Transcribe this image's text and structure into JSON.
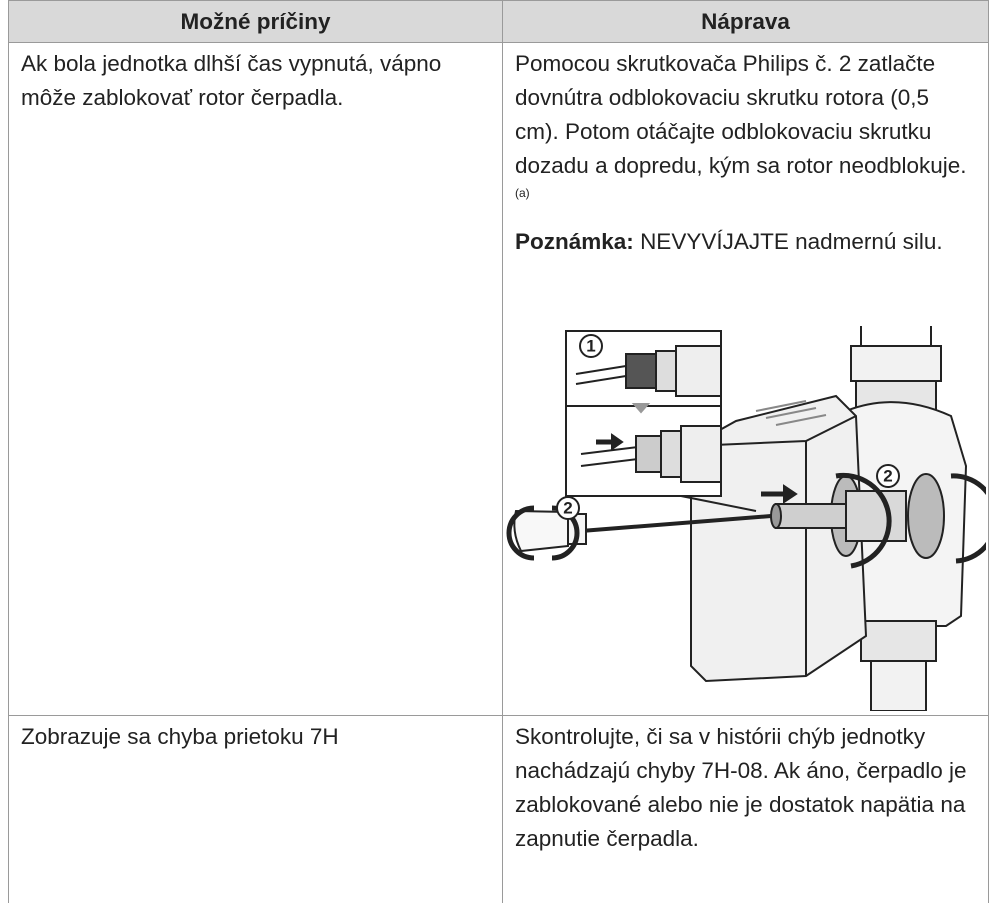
{
  "table": {
    "header": [
      "Možné príčiny",
      "Náprava"
    ],
    "rows": [
      {
        "cause": "Ak bola jednotka dlhší čas vypnutá, vápno môže zablokovať rotor čerpadla.",
        "remedy": {
          "text": "Pomocou skrutkovača Philips č. 2 zatlačte dovnútra odblokovaciu skrutku rotora (0,5 cm). Potom otáčajte odblokovaciu skrutku dozadu a dopredu, kým sa rotor neodblokuje.",
          "footnote_ref": "(a)",
          "note_label": "Poznámka:",
          "note_text": "NEVYVÍJAJTE nadmernú silu.",
          "figure_labels": [
            "1",
            "2",
            "2"
          ]
        }
      },
      {
        "cause": "Zobrazuje sa chyba prietoku 7H",
        "remedy": {
          "text": "Skontrolujte, či sa v histórii chýb jednotky nachádzajú chyby 7H-08. Ak áno, čerpadlo je zablokované alebo nie je dostatok napätia na zapnutie čerpadla."
        }
      }
    ]
  }
}
